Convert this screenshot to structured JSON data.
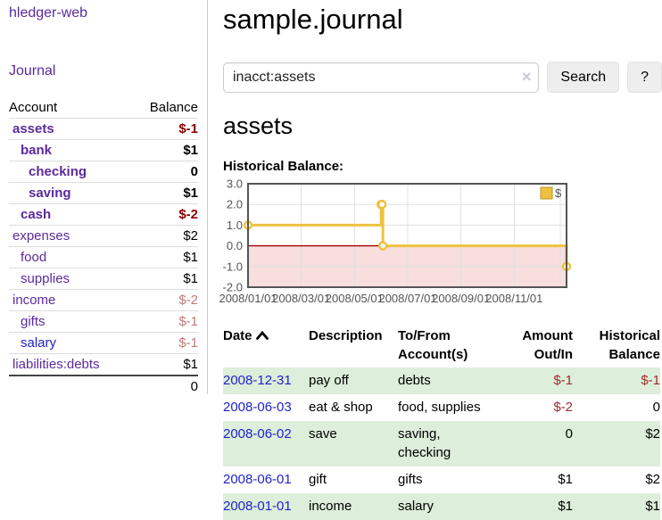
{
  "colors": {
    "purple_link": "#5b2a9d",
    "blue_link": "#2222cc",
    "negative_strong": "#8b0000",
    "negative_soft": "#c47a7a",
    "register_negative": "#9e2b2b",
    "row_stripe_green": "#ddeeda",
    "button_gray": "#eeeeee",
    "chart_line_gold": "#EDC240"
  },
  "sidebar": {
    "brand": "hledger-web",
    "nav_journal": "Journal",
    "accounts": {
      "col_account": "Account",
      "col_balance": "Balance",
      "rows": [
        {
          "name": "assets",
          "depth": 1,
          "bold": true,
          "balance": "$-1",
          "neg": "strong"
        },
        {
          "name": "bank",
          "depth": 2,
          "bold": true,
          "balance": "$1",
          "neg": "none"
        },
        {
          "name": "checking",
          "depth": 3,
          "bold": true,
          "balance": "0",
          "neg": "none"
        },
        {
          "name": "saving",
          "depth": 3,
          "bold": true,
          "balance": "$1",
          "neg": "none"
        },
        {
          "name": "cash",
          "depth": 2,
          "bold": true,
          "balance": "$-2",
          "neg": "strong"
        },
        {
          "name": "expenses",
          "depth": 1,
          "bold": false,
          "balance": "$2",
          "neg": "none"
        },
        {
          "name": "food",
          "depth": 2,
          "bold": false,
          "balance": "$1",
          "neg": "none"
        },
        {
          "name": "supplies",
          "depth": 2,
          "bold": false,
          "balance": "$1",
          "neg": "none"
        },
        {
          "name": "income",
          "depth": 1,
          "bold": false,
          "balance": "$-2",
          "neg": "soft"
        },
        {
          "name": "gifts",
          "depth": 2,
          "bold": false,
          "balance": "$-1",
          "neg": "soft"
        },
        {
          "name": "salary",
          "depth": 2,
          "bold": false,
          "balance": "$-1",
          "neg": "soft",
          "link": "blue"
        },
        {
          "name": "liabilities:debts",
          "depth": 1,
          "bold": false,
          "balance": "$1",
          "neg": "none"
        }
      ],
      "total": "0"
    }
  },
  "main": {
    "title": "sample.journal",
    "search": {
      "value": "inacct:assets",
      "clear": "×",
      "search_button": "Search",
      "help_button": "?"
    },
    "account_heading": "assets",
    "chart_title": "Historical Balance:"
  },
  "chart_data": {
    "type": "line",
    "step": true,
    "title": "Historical Balance",
    "series": [
      {
        "name": "$",
        "color": "#EDC240",
        "points": [
          {
            "date": "2008-01-01",
            "value": 1
          },
          {
            "date": "2008-06-01",
            "value": 2
          },
          {
            "date": "2008-06-02",
            "value": 2
          },
          {
            "date": "2008-06-03",
            "value": 0
          },
          {
            "date": "2008-12-31",
            "value": -1
          }
        ]
      }
    ],
    "ylim": [
      -2,
      3
    ],
    "y_ticks": [
      "3.0",
      "2.0",
      "1.0",
      "0.0",
      "-1.0",
      "-2.0"
    ],
    "xlim": [
      "2008-01-01",
      "2008-12-31"
    ],
    "x_ticks": [
      "2008/01/01",
      "2008/03/01",
      "2008/05/01",
      "2008/07/01",
      "2008/09/01",
      "2008/11/01"
    ],
    "legend": {
      "label": "$",
      "position": "top-right"
    },
    "grid": true,
    "negative_region_color": "#f9dede",
    "zero_line_color": "#a00000",
    "axis_text_color": "#545454",
    "border_color": "#545454",
    "grid_color": "#e0e0e0"
  },
  "register": {
    "columns": [
      "Date",
      "Description",
      "To/From Account(s)",
      "Amount Out/In",
      "Historical Balance"
    ],
    "sort_icon": "chevron-up",
    "rows": [
      {
        "date": "2008-12-31",
        "description": "pay off",
        "accounts": "debts",
        "amount": "$-1",
        "amount_neg": true,
        "balance": "$-1",
        "balance_neg": true
      },
      {
        "date": "2008-06-03",
        "description": "eat & shop",
        "accounts": "food, supplies",
        "amount": "$-2",
        "amount_neg": true,
        "balance": "0",
        "balance_neg": false
      },
      {
        "date": "2008-06-02",
        "description": "save",
        "accounts": "saving, checking",
        "amount": "0",
        "amount_neg": false,
        "balance": "$2",
        "balance_neg": false
      },
      {
        "date": "2008-06-01",
        "description": "gift",
        "accounts": "gifts",
        "amount": "$1",
        "amount_neg": false,
        "balance": "$2",
        "balance_neg": false
      },
      {
        "date": "2008-01-01",
        "description": "income",
        "accounts": "salary",
        "amount": "$1",
        "amount_neg": false,
        "balance": "$1",
        "balance_neg": false
      }
    ]
  }
}
